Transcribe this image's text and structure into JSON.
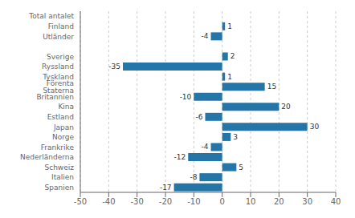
{
  "chart_data": {
    "type": "bar",
    "orientation": "horizontal",
    "categories": [
      "Total antalet",
      "Finland",
      "Utländer",
      null,
      "Sverige",
      "Ryssland",
      "Tyskland",
      "Förenta Staterna",
      "Britannien",
      "Kina",
      "Estland",
      "Japan",
      "Norge",
      "Frankrike",
      "Nederländerna",
      "Schweiz",
      "Italien",
      "Spanien"
    ],
    "values": [
      0,
      1,
      -4,
      null,
      2,
      -35,
      1,
      15,
      -10,
      20,
      -6,
      30,
      3,
      -4,
      -12,
      5,
      -8,
      -17
    ],
    "color": "#2576a8",
    "xlim": [
      -50,
      40
    ],
    "xticks": [
      -50,
      -40,
      -30,
      -20,
      -10,
      0,
      10,
      20,
      30,
      40
    ],
    "grid": true,
    "data_labels": true
  }
}
